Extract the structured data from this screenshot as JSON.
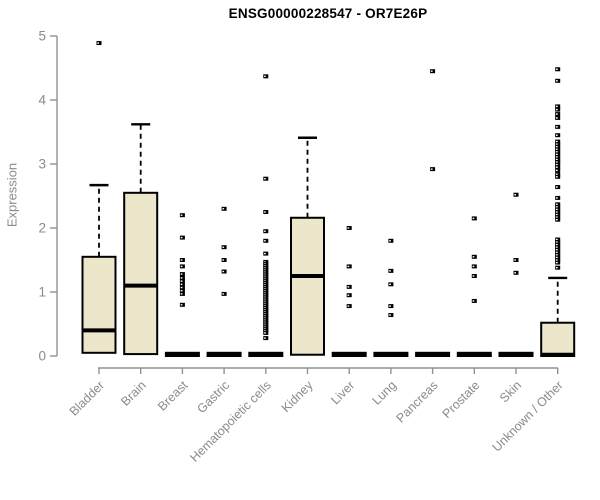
{
  "chart_data": {
    "type": "boxplot",
    "title": "ENSG00000228547 - OR7E26P",
    "ylabel": "Expression",
    "xlabel": "",
    "ylim": [
      0,
      5
    ],
    "yticks": [
      0,
      1,
      2,
      3,
      4,
      5
    ],
    "grid": false,
    "legend": null,
    "box_fill": "#ece6cb",
    "box_stroke": "#000000",
    "axis_color": "#929292",
    "tick_label_color": "#8b8b8b",
    "title_color": "#000000",
    "categories": [
      "Bladder",
      "Brain",
      "Breast",
      "Gastric",
      "Hematopoietic cells",
      "Kidney",
      "Liver",
      "Lung",
      "Pancreas",
      "Prostate",
      "Skin",
      "Unknown / Other"
    ],
    "series": [
      {
        "name": "Bladder",
        "q1": 0.05,
        "median": 0.4,
        "q3": 1.55,
        "whisker_low": 0.05,
        "whisker_high": 2.67,
        "outliers": [
          4.89
        ]
      },
      {
        "name": "Brain",
        "q1": 0.03,
        "median": 1.1,
        "q3": 2.55,
        "whisker_low": 0.03,
        "whisker_high": 3.62,
        "outliers": []
      },
      {
        "name": "Breast",
        "q1": 0,
        "median": 0.02,
        "q3": 0.05,
        "whisker_low": 0,
        "whisker_high": 0.05,
        "outliers": [
          2.2,
          1.85,
          1.5,
          1.4,
          1.28,
          1.22,
          1.17,
          1.12,
          1.07,
          1.02,
          0.97,
          0.8
        ]
      },
      {
        "name": "Gastric",
        "q1": 0,
        "median": 0.02,
        "q3": 0.05,
        "whisker_low": 0,
        "whisker_high": 0.05,
        "outliers": [
          2.3,
          1.7,
          1.5,
          1.32,
          0.97
        ]
      },
      {
        "name": "Hematopoietic cells",
        "q1": 0,
        "median": 0.02,
        "q3": 0.05,
        "whisker_low": 0,
        "whisker_high": 0.05,
        "outliers": [
          4.37,
          2.77,
          2.25,
          1.95,
          1.8,
          1.6,
          1.47,
          1.44,
          1.41,
          1.38,
          1.35,
          1.32,
          1.29,
          1.26,
          1.23,
          1.2,
          1.17,
          1.14,
          1.11,
          1.08,
          1.05,
          1.02,
          0.99,
          0.96,
          0.93,
          0.9,
          0.87,
          0.84,
          0.81,
          0.78,
          0.75,
          0.72,
          0.69,
          0.66,
          0.63,
          0.6,
          0.57,
          0.54,
          0.51,
          0.48,
          0.45,
          0.42,
          0.39,
          0.36,
          0.28
        ]
      },
      {
        "name": "Kidney",
        "q1": 0.02,
        "median": 1.25,
        "q3": 2.16,
        "whisker_low": 0.02,
        "whisker_high": 3.41,
        "outliers": []
      },
      {
        "name": "Liver",
        "q1": 0,
        "median": 0.02,
        "q3": 0.05,
        "whisker_low": 0,
        "whisker_high": 0.05,
        "outliers": [
          2.0,
          1.4,
          1.08,
          0.95,
          0.78
        ]
      },
      {
        "name": "Lung",
        "q1": 0,
        "median": 0.02,
        "q3": 0.05,
        "whisker_low": 0,
        "whisker_high": 0.05,
        "outliers": [
          1.8,
          1.33,
          1.12,
          0.78,
          0.64
        ]
      },
      {
        "name": "Pancreas",
        "q1": 0,
        "median": 0.02,
        "q3": 0.05,
        "whisker_low": 0,
        "whisker_high": 0.05,
        "outliers": [
          4.45,
          2.92
        ]
      },
      {
        "name": "Prostate",
        "q1": 0,
        "median": 0.02,
        "q3": 0.05,
        "whisker_low": 0,
        "whisker_high": 0.05,
        "outliers": [
          2.15,
          1.55,
          1.4,
          1.25,
          0.86
        ]
      },
      {
        "name": "Skin",
        "q1": 0,
        "median": 0.02,
        "q3": 0.05,
        "whisker_low": 0,
        "whisker_high": 0.05,
        "outliers": [
          2.52,
          1.5,
          1.3
        ]
      },
      {
        "name": "Unknown / Other",
        "q1": 0,
        "median": 0.02,
        "q3": 0.52,
        "whisker_low": 0,
        "whisker_high": 1.22,
        "outliers": [
          4.48,
          4.3,
          3.9,
          3.85,
          3.78,
          3.72,
          3.58,
          3.45,
          3.35,
          3.31,
          3.27,
          3.23,
          3.19,
          3.15,
          3.11,
          3.07,
          3.03,
          2.99,
          2.95,
          2.9,
          2.84,
          2.8,
          2.64,
          2.47,
          2.37,
          2.33,
          2.29,
          2.25,
          2.21,
          2.17,
          2.13,
          1.82,
          1.78,
          1.74,
          1.7,
          1.66,
          1.62,
          1.58,
          1.54,
          1.5,
          1.46,
          1.38
        ]
      }
    ]
  }
}
